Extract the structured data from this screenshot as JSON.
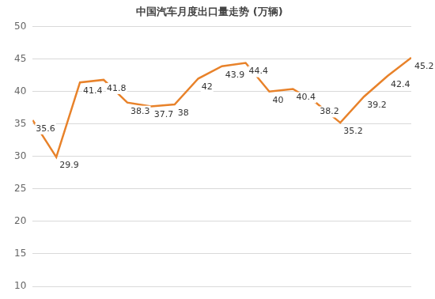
{
  "chart_data": {
    "type": "line",
    "title": "中国汽车月度出口量走势 (万辆)",
    "categories": [
      null,
      null,
      null,
      null,
      null,
      null,
      null,
      null,
      null,
      null,
      null,
      null,
      null,
      null,
      null,
      null,
      null
    ],
    "values": [
      35.6,
      29.9,
      41.4,
      41.8,
      38.3,
      37.7,
      38,
      42,
      43.9,
      44.4,
      40,
      40.4,
      38.2,
      35.2,
      39.2,
      42.4,
      45.2
    ],
    "color": "#e8822a",
    "ylim": [
      10,
      50
    ],
    "yticks": [
      10,
      15,
      20,
      25,
      30,
      35,
      40,
      45,
      50
    ],
    "grid": true,
    "data_labels": true,
    "tick_labels": "y"
  }
}
